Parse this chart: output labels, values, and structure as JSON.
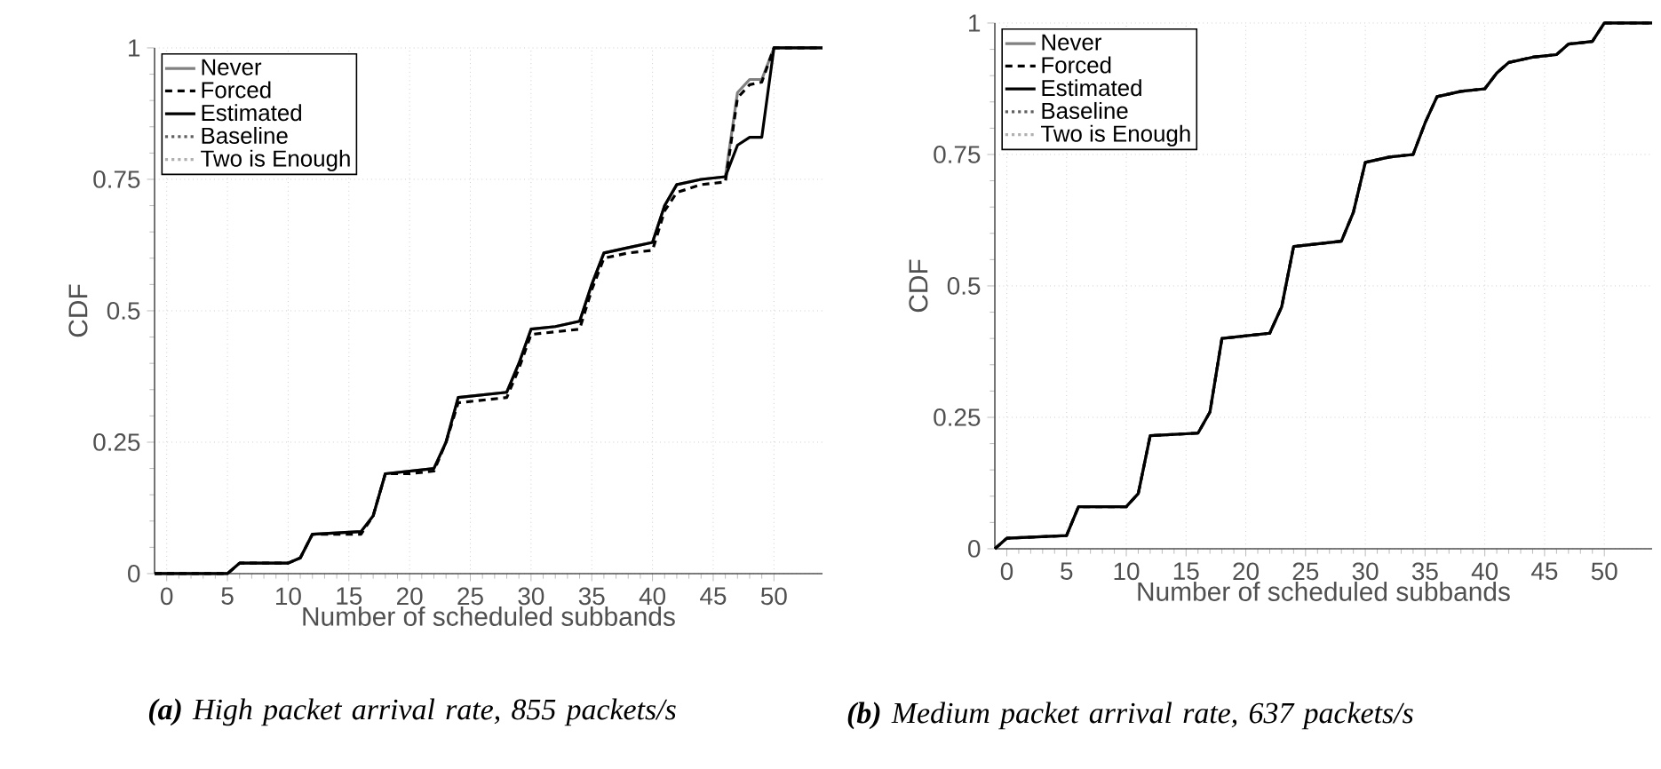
{
  "chart_data": [
    {
      "type": "line",
      "xlabel": "Number of scheduled subbands",
      "ylabel": "CDF",
      "annotations": [
        "**(a)** High packet arrival rate, 855 packets/s"
      ],
      "x": [
        -1,
        0,
        5,
        6,
        10,
        11,
        12,
        16,
        17,
        18,
        20,
        22,
        23,
        24,
        28,
        29,
        30,
        32,
        34,
        35,
        36,
        38,
        40,
        41,
        42,
        44,
        46,
        47,
        48,
        49,
        50,
        54
      ],
      "xlim": [
        -1,
        54
      ],
      "ylim": [
        0,
        1
      ],
      "xticks": [
        0,
        5,
        10,
        15,
        20,
        25,
        30,
        35,
        40,
        45,
        50
      ],
      "yticks": [
        0,
        0.25,
        0.5,
        0.75,
        1
      ],
      "grid": true,
      "legend": "top left",
      "series": [
        {
          "name": "Never",
          "color": "#808080",
          "line_style": "solid",
          "values": [
            0,
            0,
            0,
            0.02,
            0.02,
            0.03,
            0.075,
            0.08,
            0.11,
            0.19,
            0.195,
            0.2,
            0.25,
            0.335,
            0.345,
            0.4,
            0.465,
            0.47,
            0.48,
            0.55,
            0.61,
            0.62,
            0.63,
            0.7,
            0.74,
            0.75,
            0.755,
            0.915,
            0.94,
            0.94,
            1,
            1
          ]
        },
        {
          "name": "Forced",
          "color": "#000000",
          "line_style": "dashed",
          "values": [
            0,
            0,
            0,
            0.02,
            0.02,
            0.03,
            0.075,
            0.075,
            0.11,
            0.19,
            0.19,
            0.195,
            0.25,
            0.325,
            0.335,
            0.39,
            0.455,
            0.46,
            0.465,
            0.54,
            0.6,
            0.61,
            0.615,
            0.69,
            0.725,
            0.74,
            0.745,
            0.905,
            0.93,
            0.935,
            1,
            1
          ]
        },
        {
          "name": "Estimated",
          "color": "#000000",
          "line_style": "solid",
          "values": [
            0,
            0,
            0,
            0.02,
            0.02,
            0.03,
            0.075,
            0.08,
            0.11,
            0.19,
            0.195,
            0.2,
            0.25,
            0.335,
            0.345,
            0.4,
            0.465,
            0.47,
            0.48,
            0.55,
            0.61,
            0.62,
            0.63,
            0.7,
            0.74,
            0.75,
            0.755,
            0.815,
            0.83,
            0.83,
            1,
            1
          ]
        },
        {
          "name": "Baseline",
          "color": "#606060",
          "line_style": "dotted",
          "values": [
            null,
            null,
            null,
            null,
            null,
            null,
            null,
            null,
            null,
            null,
            null,
            null,
            null,
            null,
            null,
            null,
            null,
            null,
            null,
            null,
            null,
            null,
            null,
            null,
            null,
            null,
            null,
            null,
            null,
            null,
            null,
            null
          ]
        },
        {
          "name": "Two is Enough",
          "color": "#b0b0b0",
          "line_style": "dotted",
          "values": [
            null,
            null,
            null,
            null,
            null,
            null,
            null,
            null,
            null,
            null,
            null,
            null,
            null,
            null,
            null,
            null,
            null,
            null,
            null,
            null,
            null,
            null,
            null,
            null,
            null,
            null,
            null,
            null,
            null,
            null,
            null,
            null
          ]
        }
      ]
    },
    {
      "type": "line",
      "xlabel": "Number of scheduled subbands",
      "ylabel": "CDF",
      "annotations": [
        "**(b)** Medium packet arrival rate, 637 packets/s"
      ],
      "x": [
        -1,
        0,
        5,
        6,
        10,
        11,
        12,
        16,
        17,
        18,
        22,
        23,
        24,
        28,
        29,
        30,
        32,
        34,
        35,
        36,
        38,
        40,
        41,
        42,
        44,
        46,
        47,
        49,
        50,
        54
      ],
      "xlim": [
        -1,
        54
      ],
      "ylim": [
        0,
        1
      ],
      "xticks": [
        0,
        5,
        10,
        15,
        20,
        25,
        30,
        35,
        40,
        45,
        50
      ],
      "yticks": [
        0,
        0.25,
        0.5,
        0.75,
        1
      ],
      "grid": true,
      "legend": "top left",
      "series": [
        {
          "name": "Never",
          "color": "#808080",
          "line_style": "solid",
          "values": [
            0,
            0.02,
            0.025,
            0.08,
            0.08,
            0.105,
            0.215,
            0.22,
            0.26,
            0.4,
            0.41,
            0.46,
            0.575,
            0.585,
            0.64,
            0.735,
            0.745,
            0.75,
            0.81,
            0.86,
            0.87,
            0.875,
            0.905,
            0.925,
            0.935,
            0.94,
            0.96,
            0.965,
            1,
            1
          ]
        },
        {
          "name": "Forced",
          "color": "#000000",
          "line_style": "dashed",
          "values": [
            0,
            0.02,
            0.025,
            0.08,
            0.08,
            0.105,
            0.215,
            0.22,
            0.26,
            0.4,
            0.41,
            0.46,
            0.575,
            0.585,
            0.64,
            0.735,
            0.745,
            0.75,
            0.81,
            0.86,
            0.87,
            0.875,
            0.905,
            0.925,
            0.935,
            0.94,
            0.96,
            0.965,
            1,
            1
          ]
        },
        {
          "name": "Estimated",
          "color": "#000000",
          "line_style": "solid",
          "values": [
            0,
            0.02,
            0.025,
            0.08,
            0.08,
            0.105,
            0.215,
            0.22,
            0.26,
            0.4,
            0.41,
            0.46,
            0.575,
            0.585,
            0.64,
            0.735,
            0.745,
            0.75,
            0.81,
            0.86,
            0.87,
            0.875,
            0.905,
            0.925,
            0.935,
            0.94,
            0.96,
            0.965,
            1,
            1
          ]
        },
        {
          "name": "Baseline",
          "color": "#606060",
          "line_style": "dotted",
          "values": [
            null,
            null,
            null,
            null,
            null,
            null,
            null,
            null,
            null,
            null,
            null,
            null,
            null,
            null,
            null,
            null,
            null,
            null,
            null,
            null,
            null,
            null,
            null,
            null,
            null,
            null,
            null,
            null,
            null,
            null
          ]
        },
        {
          "name": "Two is Enough",
          "color": "#b0b0b0",
          "line_style": "dotted",
          "values": [
            null,
            null,
            null,
            null,
            null,
            null,
            null,
            null,
            null,
            null,
            null,
            null,
            null,
            null,
            null,
            null,
            null,
            null,
            null,
            null,
            null,
            null,
            null,
            null,
            null,
            null,
            null,
            null,
            null,
            null
          ]
        }
      ]
    }
  ]
}
